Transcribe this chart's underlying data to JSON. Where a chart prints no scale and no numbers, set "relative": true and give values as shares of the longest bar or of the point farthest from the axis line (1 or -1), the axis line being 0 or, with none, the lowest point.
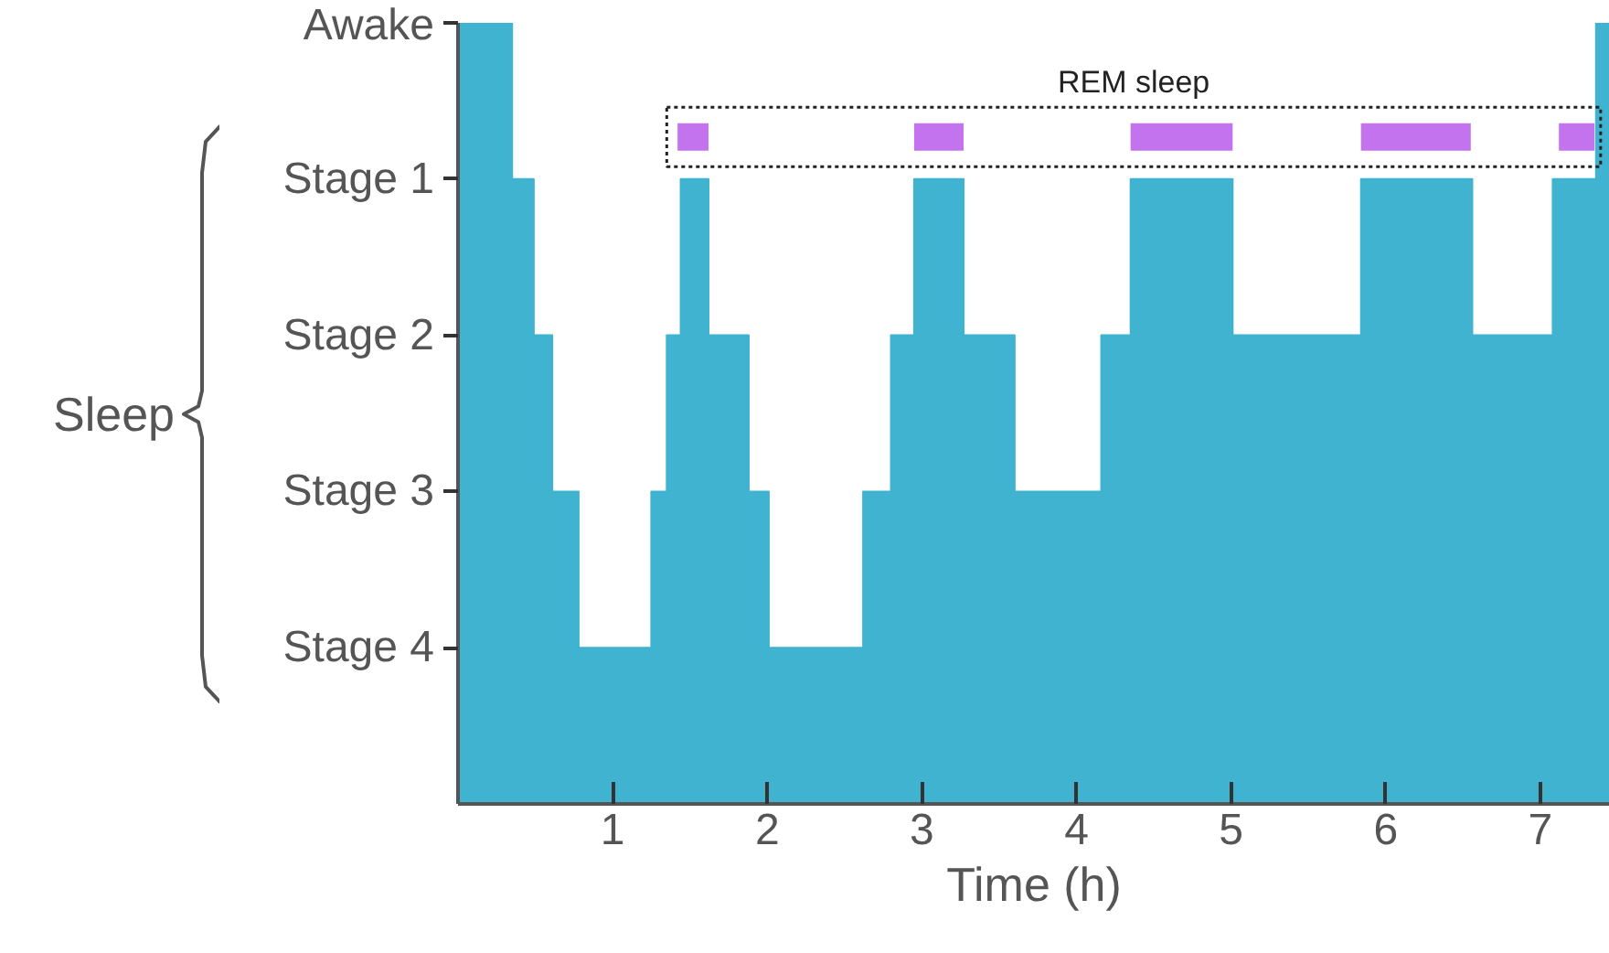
{
  "chart_data": {
    "type": "area",
    "relative": true,
    "xlabel": "Time (h)",
    "xlim": [
      0,
      7.45
    ],
    "xticks": [
      1,
      2,
      3,
      4,
      5,
      6,
      7
    ],
    "grid": false,
    "series": [
      {
        "color": "#3fb3d0",
        "x": [
          0,
          0.35,
          0.35,
          0.49,
          0.49,
          0.61,
          0.61,
          0.78,
          0.78,
          1.25,
          1.25,
          1.35,
          1.35,
          1.44,
          1.44,
          1.62,
          1.62,
          1.88,
          1.88,
          2.01,
          2.01,
          2.62,
          2.62,
          2.8,
          2.8,
          2.95,
          2.95,
          3.27,
          3.27,
          3.6,
          3.6,
          4.16,
          4.16,
          4.35,
          4.35,
          5.01,
          5.01,
          5.84,
          5.84,
          6.56,
          6.56,
          7.08,
          7.08,
          7.36,
          7.36,
          7.45
        ],
        "values": [
          1,
          1,
          0.8,
          0.8,
          0.6,
          0.6,
          0.4,
          0.4,
          0.2,
          0.2,
          0.4,
          0.4,
          0.6,
          0.6,
          0.8,
          0.8,
          0.6,
          0.6,
          0.4,
          0.4,
          0.2,
          0.2,
          0.4,
          0.4,
          0.6,
          0.6,
          0.8,
          0.8,
          0.6,
          0.6,
          0.4,
          0.4,
          0.6,
          0.6,
          0.8,
          0.8,
          0.6,
          0.6,
          0.8,
          0.8,
          0.6,
          0.6,
          0.8,
          0.8,
          1,
          1
        ]
      },
      {
        "type": "line",
        "name": "REM sleep",
        "color": "#c473ee",
        "x": [
          1.42,
          1.62,
          null,
          2.95,
          3.27,
          null,
          4.35,
          5.01,
          null,
          5.84,
          6.55,
          null,
          7.12,
          7.35
        ],
        "values": [
          0.854,
          0.854,
          null,
          0.854,
          0.854,
          null,
          0.854,
          0.854,
          null,
          0.854,
          0.854,
          null,
          0.854,
          0.854
        ]
      }
    ],
    "annotations": [
      "Awake",
      "Stage 1",
      "Stage 2",
      "Stage 3",
      "Stage 4",
      "Sleep"
    ]
  }
}
